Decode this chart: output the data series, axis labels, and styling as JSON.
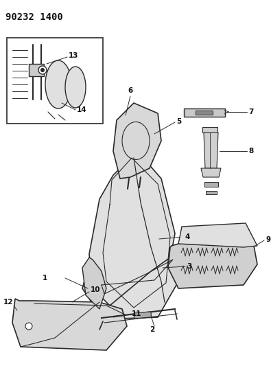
{
  "title": "90232 1400",
  "bg_color": "#ffffff",
  "line_color": "#2a2a2a",
  "fill_color": "#e8e8e8",
  "text_color": "#111111",
  "title_fontsize": 10,
  "label_fontsize": 7.5,
  "figsize": [
    3.95,
    5.33
  ],
  "dpi": 100
}
